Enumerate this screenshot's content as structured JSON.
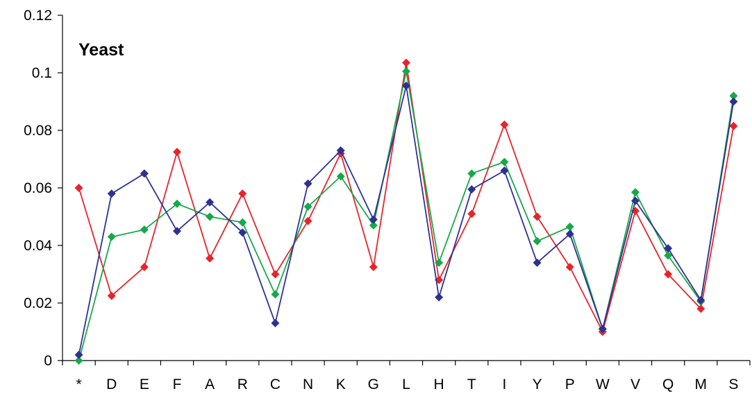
{
  "chart_data": {
    "type": "line",
    "title": "Yeast",
    "xlabel": "",
    "ylabel": "",
    "categories": [
      "*",
      "D",
      "E",
      "F",
      "A",
      "R",
      "C",
      "N",
      "K",
      "G",
      "L",
      "H",
      "T",
      "I",
      "Y",
      "P",
      "W",
      "V",
      "Q",
      "M",
      "S"
    ],
    "ylim": [
      0,
      0.12
    ],
    "yticks": [
      "0",
      "0.02",
      "0.04",
      "0.06",
      "0.08",
      "0.1",
      "0.12"
    ],
    "grid": false,
    "legend": "none",
    "series": [
      {
        "color": "#e8232a",
        "values": [
          0.06,
          0.0225,
          0.0325,
          0.0725,
          0.0355,
          0.058,
          0.03,
          0.0485,
          0.072,
          0.0325,
          0.1035,
          0.028,
          0.051,
          0.082,
          0.05,
          0.0325,
          0.01,
          0.052,
          0.03,
          0.018,
          0.0815
        ]
      },
      {
        "color": "#16a94a",
        "values": [
          0.0,
          0.043,
          0.0455,
          0.0545,
          0.05,
          0.048,
          0.023,
          0.0535,
          0.064,
          0.047,
          0.1005,
          0.034,
          0.065,
          0.069,
          0.0415,
          0.0465,
          0.011,
          0.0585,
          0.0365,
          0.0205,
          0.092
        ]
      },
      {
        "color": "#2e3192",
        "values": [
          0.002,
          0.058,
          0.065,
          0.045,
          0.055,
          0.0445,
          0.013,
          0.0615,
          0.073,
          0.049,
          0.0955,
          0.022,
          0.0595,
          0.066,
          0.034,
          0.044,
          0.011,
          0.0555,
          0.039,
          0.021,
          0.09
        ]
      }
    ]
  }
}
